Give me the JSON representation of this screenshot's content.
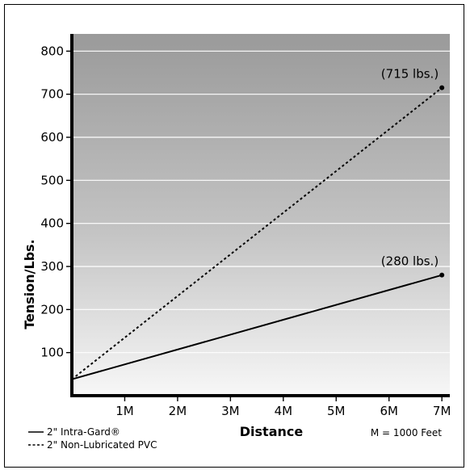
{
  "chart_data": {
    "type": "line",
    "xlabel": "Distance",
    "ylabel": "Tension/Lbs.",
    "x_ticks": [
      {
        "value": 1,
        "label": "1M"
      },
      {
        "value": 2,
        "label": "2M"
      },
      {
        "value": 3,
        "label": "3M"
      },
      {
        "value": 4,
        "label": "4M"
      },
      {
        "value": 5,
        "label": "5M"
      },
      {
        "value": 6,
        "label": "6M"
      },
      {
        "value": 7,
        "label": "7M"
      }
    ],
    "y_ticks": [
      100,
      200,
      300,
      400,
      500,
      600,
      700,
      800
    ],
    "xlim": [
      0,
      7.15
    ],
    "ylim": [
      0,
      840
    ],
    "grid": true,
    "background": "gradient-gray",
    "legend_position": "bottom-left",
    "series": [
      {
        "name": "2\" Intra-Gard®",
        "style": "solid",
        "color": "#000000",
        "x": [
          0,
          7
        ],
        "y": [
          38,
          280
        ],
        "end_label": "(280 lbs.)"
      },
      {
        "name": "2\" Non-Lubricated PVC",
        "style": "dashed",
        "color": "#000000",
        "x": [
          0,
          7
        ],
        "y": [
          38,
          715
        ],
        "end_label": "(715 lbs.)"
      }
    ],
    "note": "M = 1000 Feet"
  }
}
